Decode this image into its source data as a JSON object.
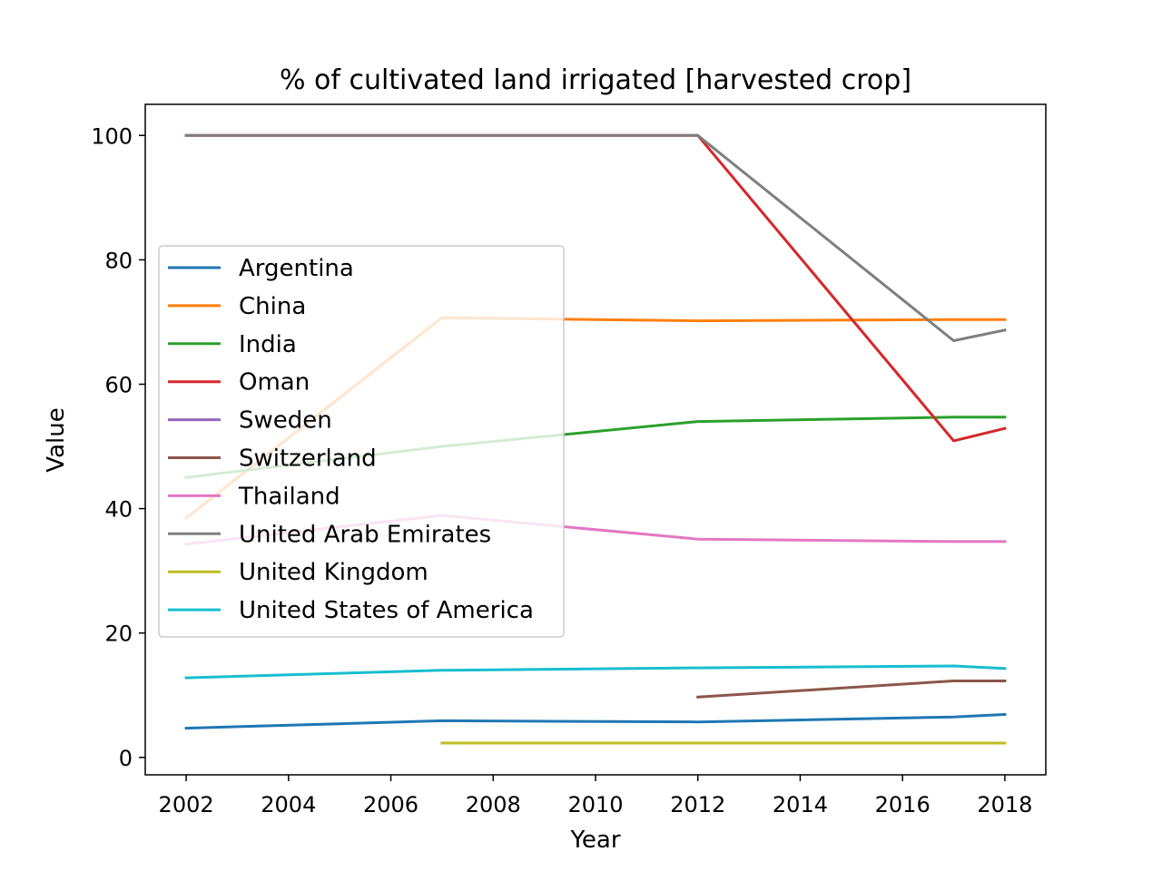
{
  "chart_data": {
    "type": "line",
    "title": "% of cultivated land irrigated [harvested crop]",
    "xlabel": "Year",
    "ylabel": "Value",
    "xlim": [
      2001.2,
      2018.8
    ],
    "ylim": [
      -2.8,
      105
    ],
    "xticks": [
      2002,
      2004,
      2006,
      2008,
      2010,
      2012,
      2014,
      2016,
      2018
    ],
    "yticks": [
      0,
      20,
      40,
      60,
      80,
      100
    ],
    "legend_position": "center-left",
    "grid": false,
    "series": [
      {
        "name": "Argentina",
        "color": "#1f77b4",
        "x": [
          2002,
          2007,
          2012,
          2017,
          2018
        ],
        "y": [
          4.7,
          5.9,
          5.7,
          6.5,
          6.9
        ]
      },
      {
        "name": "China",
        "color": "#ff7f0e",
        "x": [
          2002,
          2007,
          2012,
          2017,
          2018
        ],
        "y": [
          38.5,
          70.7,
          70.2,
          70.4,
          70.4
        ]
      },
      {
        "name": "India",
        "color": "#2ca02c",
        "x": [
          2002,
          2007,
          2012,
          2017,
          2018
        ],
        "y": [
          45.0,
          50.0,
          54.0,
          54.7,
          54.7
        ]
      },
      {
        "name": "Oman",
        "color": "#d62728",
        "x": [
          2002,
          2007,
          2012,
          2017,
          2018
        ],
        "y": [
          100,
          100,
          100,
          50.9,
          52.9
        ]
      },
      {
        "name": "Sweden",
        "color": "#9467bd",
        "x": [],
        "y": []
      },
      {
        "name": "Switzerland",
        "color": "#8c564b",
        "x": [
          2012,
          2017,
          2018
        ],
        "y": [
          9.7,
          12.3,
          12.3
        ]
      },
      {
        "name": "Thailand",
        "color": "#e377c2",
        "x": [
          2002,
          2007,
          2012,
          2017,
          2018
        ],
        "y": [
          34.3,
          38.9,
          35.1,
          34.7,
          34.7
        ]
      },
      {
        "name": "United Arab Emirates",
        "color": "#7f7f7f",
        "x": [
          2002,
          2007,
          2012,
          2017,
          2018
        ],
        "y": [
          100,
          100,
          100,
          67.0,
          68.7
        ]
      },
      {
        "name": "United Kingdom",
        "color": "#bcbd22",
        "x": [
          2007,
          2012,
          2017,
          2018
        ],
        "y": [
          2.3,
          2.3,
          2.3,
          2.3
        ]
      },
      {
        "name": "United States of America",
        "color": "#17becf",
        "x": [
          2002,
          2007,
          2012,
          2017,
          2018
        ],
        "y": [
          12.8,
          14.0,
          14.4,
          14.7,
          14.3
        ]
      }
    ]
  }
}
